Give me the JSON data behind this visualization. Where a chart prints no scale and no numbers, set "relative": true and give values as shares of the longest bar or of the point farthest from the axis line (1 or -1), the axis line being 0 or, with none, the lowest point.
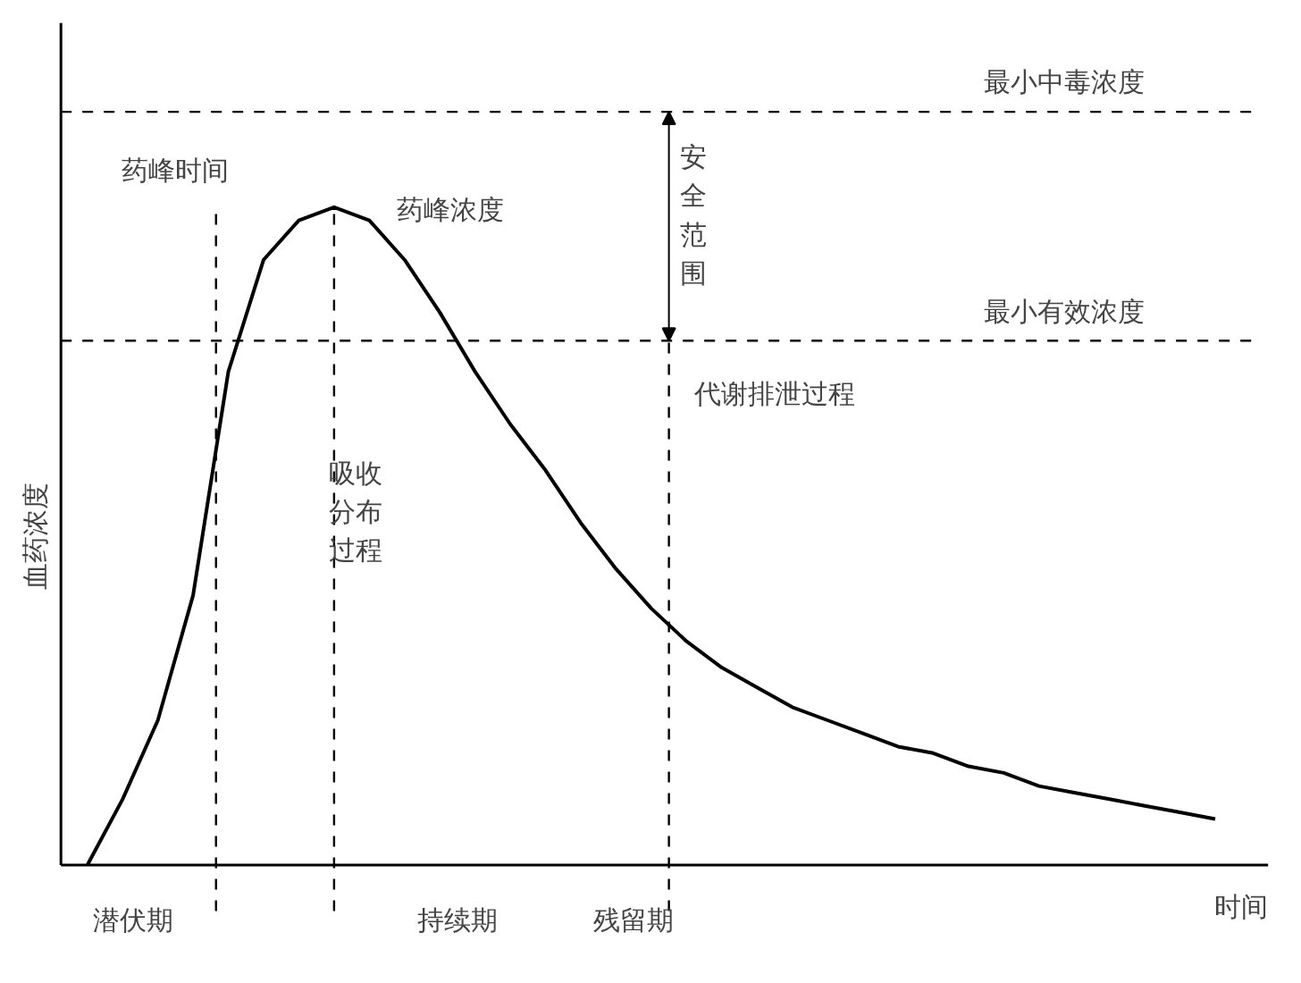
{
  "chart_data": {
    "type": "line",
    "relative": true,
    "xlabel": "时间",
    "ylabel": "血药浓度",
    "line_style": "solid",
    "marker": "none",
    "grid": false,
    "categories": [
      null,
      null,
      null,
      null,
      null,
      null,
      null,
      null,
      null,
      null,
      null,
      null,
      null,
      null,
      null,
      null,
      null,
      null,
      null,
      null,
      null,
      null,
      null,
      null,
      null,
      null,
      null,
      null,
      null,
      null,
      null,
      null,
      null
    ],
    "series": [
      {
        "color": "#000000",
        "values": [
          0,
          0.1,
          0.22,
          0.41,
          0.75,
          0.92,
          0.98,
          1,
          0.98,
          0.92,
          0.84,
          0.75,
          0.67,
          0.6,
          0.52,
          0.45,
          0.39,
          0.34,
          0.3,
          0.27,
          0.24,
          0.22,
          0.2,
          0.18,
          0.17,
          0.15,
          0.14,
          0.12,
          0.11,
          0.1,
          0.09,
          0.08,
          0.07
        ]
      }
    ],
    "ref_lines": [
      {
        "axis": "y",
        "value": 1.145,
        "label": "最小中毒浓度",
        "color": "#000000",
        "line_style": "dashed"
      },
      {
        "axis": "y",
        "value": 0.797,
        "label": "最小有效浓度",
        "color": "#000000",
        "line_style": "dashed"
      }
    ],
    "annotations": [
      "药峰时间",
      "药峰浓度",
      "安全范围",
      "吸收分布过程",
      "代谢排泄过程",
      "潜伏期",
      "持续期",
      "残留期"
    ]
  }
}
